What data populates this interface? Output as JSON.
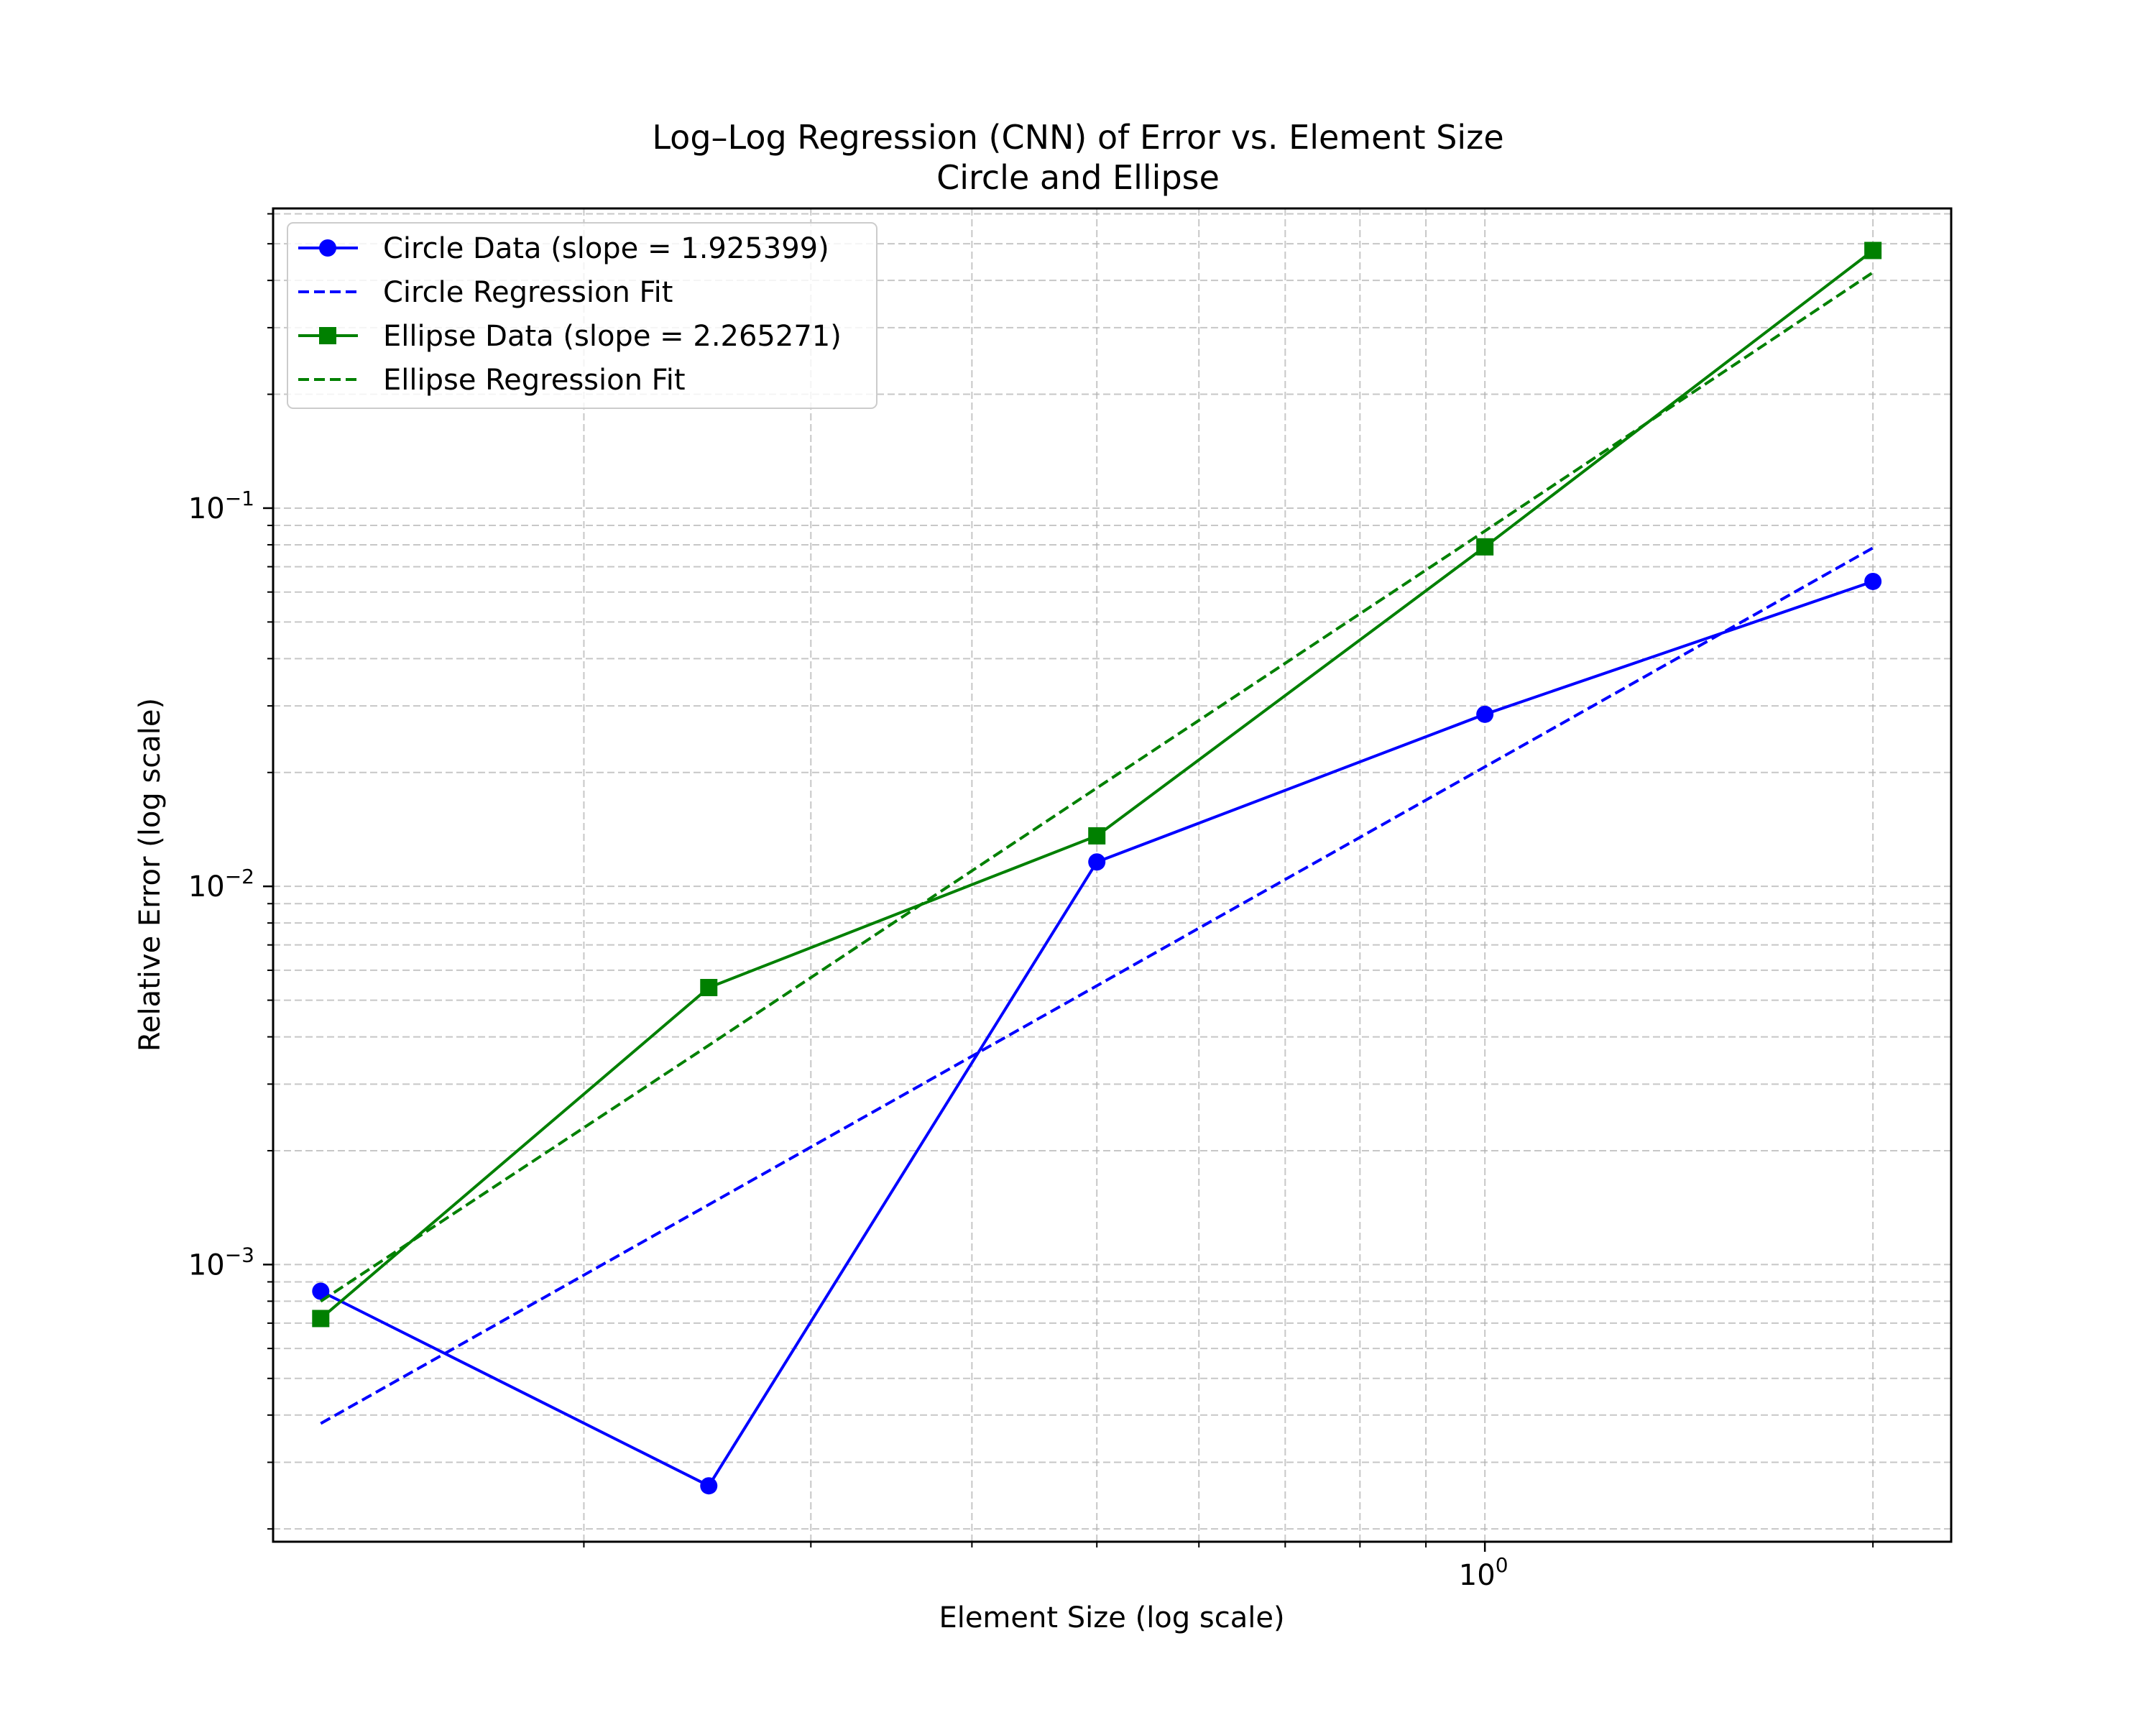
{
  "chart_data": {
    "type": "line",
    "title": "Log–Log Regression (CNN) of Error vs. Element Size",
    "subtitle": "Circle and Ellipse",
    "xlabel": "Element Size (log scale)",
    "ylabel": "Relative Error (log scale)",
    "xscale": "log",
    "yscale": "log",
    "xlim": [
      0.1148,
      2.3
    ],
    "ylim": [
      0.000185,
      0.62
    ],
    "x_ticks": [
      {
        "value": 1,
        "base": "10",
        "exp": "0"
      }
    ],
    "y_ticks": [
      {
        "value": 0.001,
        "base": "10",
        "exp": "−3"
      },
      {
        "value": 0.01,
        "base": "10",
        "exp": "−2"
      },
      {
        "value": 0.1,
        "base": "10",
        "exp": "−1"
      }
    ],
    "grid": true,
    "legend_position": "upper-left",
    "x": [
      0.125,
      0.25,
      0.5,
      1.0,
      2.0
    ],
    "series": [
      {
        "name": "Circle Data (slope = 1.925399)",
        "style": "solid",
        "marker": "circle",
        "color": "#0000ff",
        "values": [
          0.00085,
          0.00026,
          0.0116,
          0.0285,
          0.064
        ]
      },
      {
        "name": "Circle Regression Fit",
        "style": "dashed",
        "marker": "none",
        "color": "#0000ff",
        "values": [
          0.00038,
          0.00144,
          0.00546,
          0.0207,
          0.0785
        ]
      },
      {
        "name": "Ellipse Data (slope = 2.265271)",
        "style": "solid",
        "marker": "square",
        "color": "#008000",
        "values": [
          0.00072,
          0.0054,
          0.0136,
          0.079,
          0.48
        ]
      },
      {
        "name": "Ellipse Regression Fit",
        "style": "dashed",
        "marker": "none",
        "color": "#008000",
        "values": [
          0.0008,
          0.0038,
          0.0182,
          0.087,
          0.42
        ]
      }
    ]
  }
}
